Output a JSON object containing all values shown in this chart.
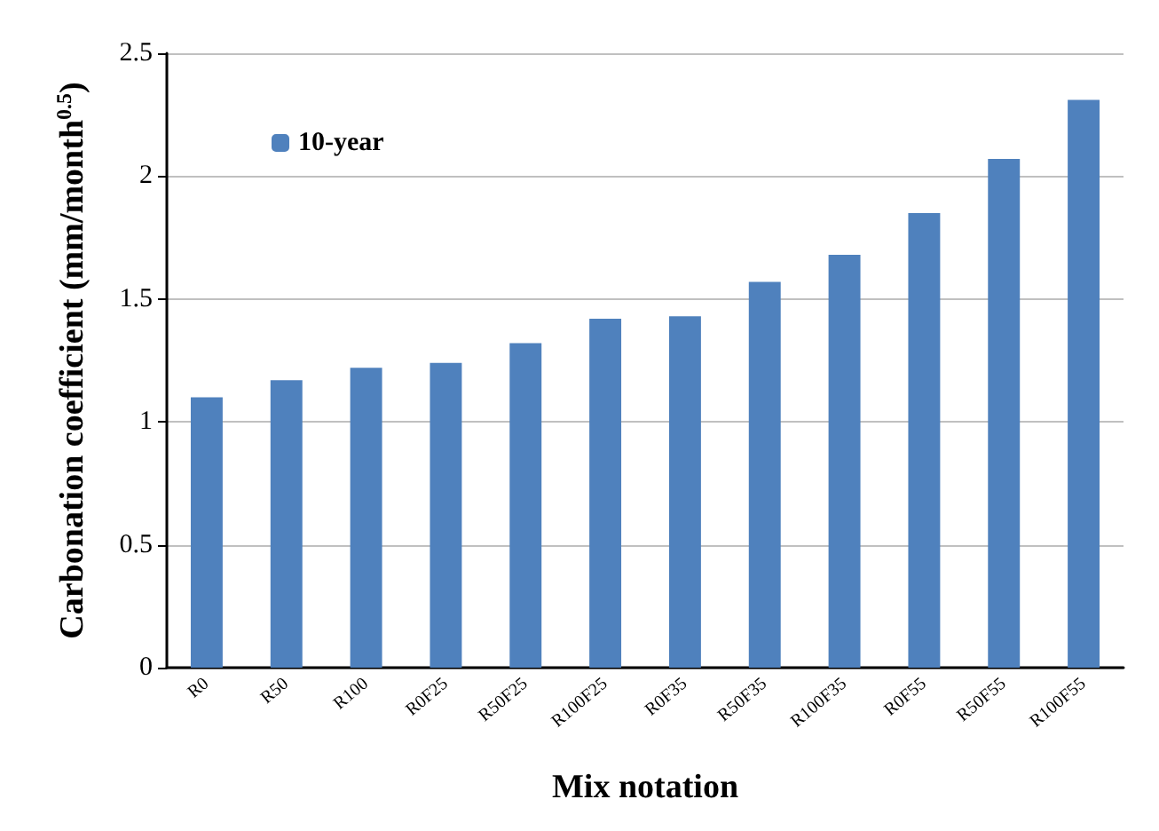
{
  "chart_data": {
    "type": "bar",
    "xlabel": "Mix notation",
    "ylabel": "Carbonation coefficient (mm/month$^{0.5}$)",
    "categories": [
      "R0",
      "R50",
      "R100",
      "R0F25",
      "R50F25",
      "R100F25",
      "R0F35",
      "R50F35",
      "R100F35",
      "R0F55",
      "R50F55",
      "R100F55"
    ],
    "series": [
      {
        "name": "10-year",
        "color": "#4f81bd",
        "values": [
          1.1,
          1.17,
          1.22,
          1.24,
          1.32,
          1.42,
          1.43,
          1.57,
          1.68,
          1.85,
          2.07,
          2.31
        ]
      }
    ],
    "ylim": [
      0,
      2.5
    ],
    "yticks": [
      0,
      0.5,
      1,
      1.5,
      2,
      2.5
    ],
    "grid": "y",
    "legend": "top left"
  }
}
